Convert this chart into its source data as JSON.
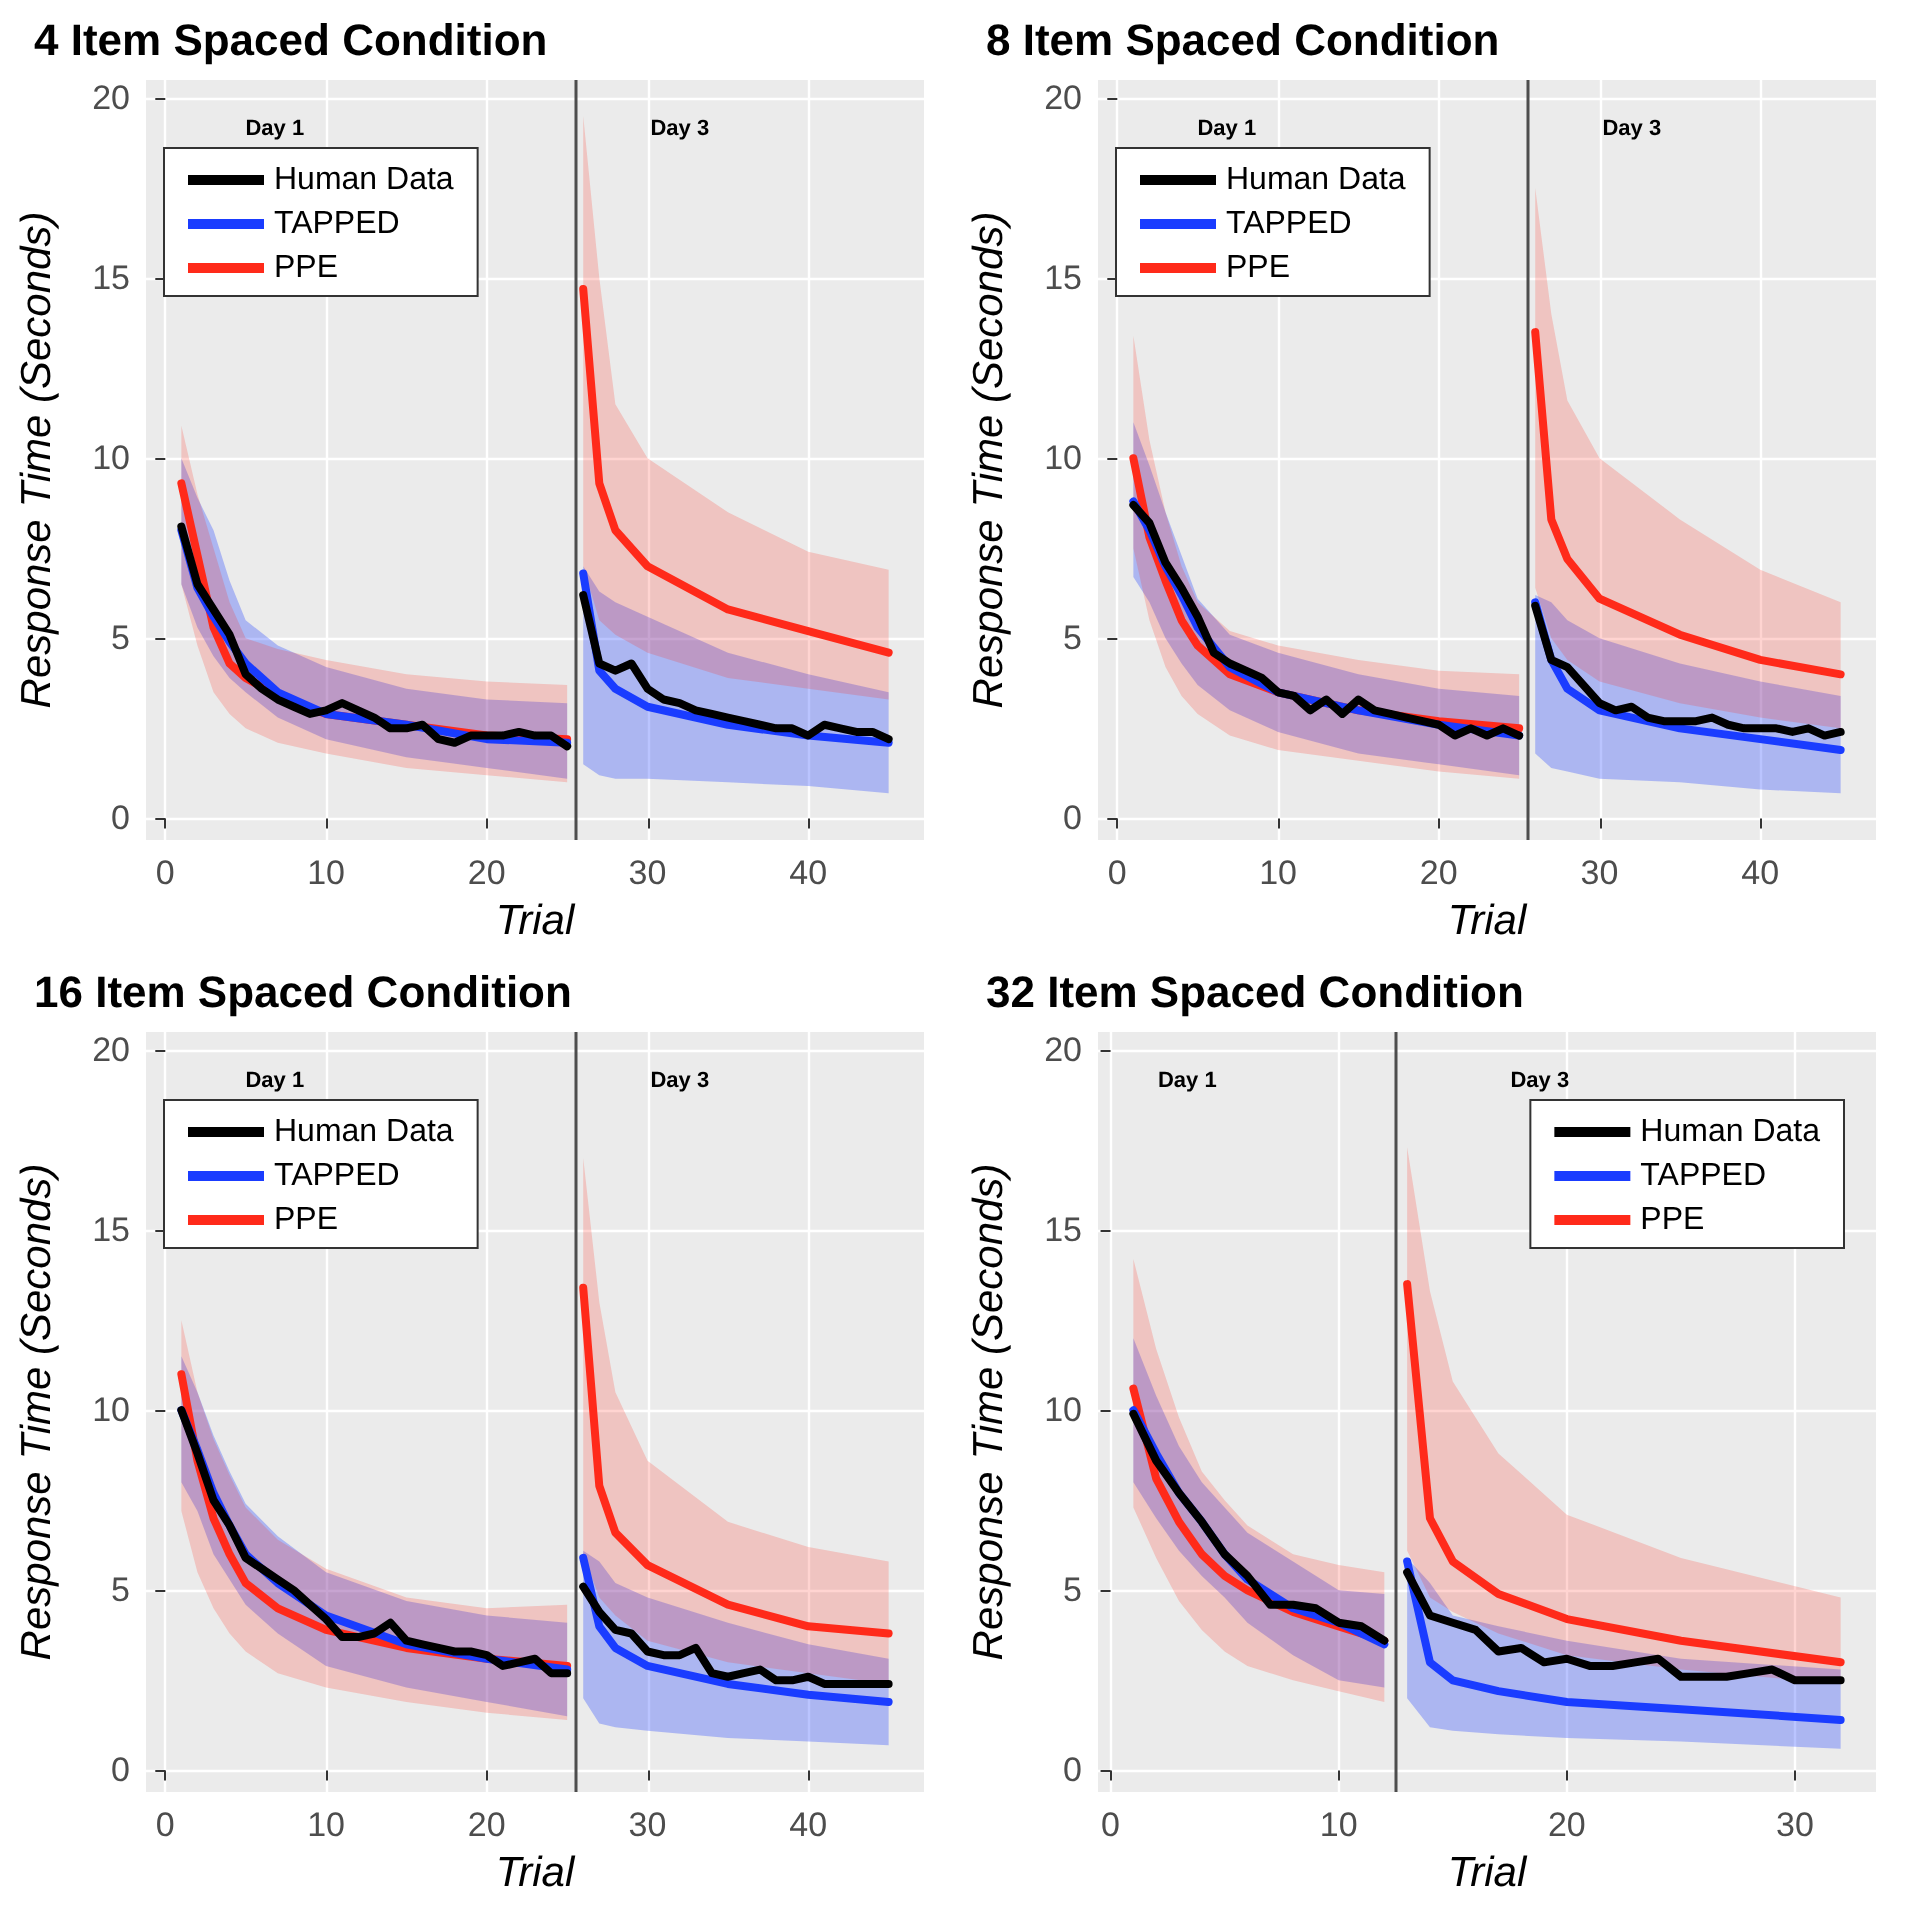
{
  "chart_data": [
    {
      "type": "line",
      "title": "4 Item Spaced Condition",
      "xlabel": "Trial",
      "ylabel": "Response Time (Seconds)",
      "annotations": [
        "Day 1",
        "Day 3"
      ],
      "xlim": [
        -1.2,
        47.2
      ],
      "ylim": [
        -0.6,
        20.5
      ],
      "xticks": [
        0,
        10,
        20,
        30,
        40
      ],
      "yticks": [
        0,
        5,
        10,
        15,
        20
      ],
      "grid": true,
      "legend": "top left",
      "marker": "none",
      "line_style": "solid",
      "ref_lines": [
        {
          "axis": "x",
          "value": 25.5,
          "color": "#4d4d4d"
        }
      ],
      "series": [
        {
          "name": "Human Data",
          "color": "#000000",
          "x": [
            1,
            2,
            3,
            4,
            5,
            6,
            7,
            8,
            9,
            10,
            11,
            12,
            13,
            14,
            15,
            16,
            17,
            18,
            19,
            20,
            21,
            22,
            23,
            24,
            25,
            25.5,
            26,
            27,
            28,
            29,
            30,
            31,
            32,
            33,
            34,
            35,
            36,
            37,
            38,
            39,
            40,
            41,
            42,
            43,
            44,
            45
          ],
          "values": [
            8.1,
            6.5,
            5.8,
            5.1,
            4.0,
            3.6,
            3.3,
            3.1,
            2.9,
            3.0,
            3.2,
            3.0,
            2.8,
            2.5,
            2.5,
            2.6,
            2.2,
            2.1,
            2.3,
            2.3,
            2.3,
            2.4,
            2.3,
            2.3,
            2.0,
            null,
            6.2,
            4.3,
            4.1,
            4.3,
            3.6,
            3.3,
            3.2,
            3.0,
            2.9,
            2.8,
            2.7,
            2.6,
            2.5,
            2.5,
            2.3,
            2.6,
            2.5,
            2.4,
            2.4,
            2.2
          ]
        },
        {
          "name": "TAPPED",
          "color": "#1a3cff",
          "x": [
            1,
            2,
            3,
            4,
            5,
            7,
            10,
            15,
            20,
            25,
            25.5,
            26,
            27,
            28,
            30,
            35,
            40,
            45
          ],
          "values": [
            8.0,
            6.4,
            5.6,
            4.9,
            4.3,
            3.5,
            2.9,
            2.6,
            2.2,
            2.1,
            null,
            6.8,
            4.1,
            3.6,
            3.1,
            2.6,
            2.3,
            2.1
          ],
          "lower": [
            6.5,
            5.3,
            4.5,
            3.9,
            3.5,
            2.8,
            2.2,
            1.7,
            1.4,
            1.1,
            null,
            1.5,
            1.2,
            1.1,
            1.1,
            1.0,
            0.9,
            0.7
          ],
          "upper": [
            10.0,
            8.9,
            8.0,
            6.6,
            5.5,
            4.8,
            4.2,
            3.6,
            3.3,
            3.2,
            null,
            7.0,
            6.3,
            6.0,
            5.6,
            4.6,
            4.0,
            3.5
          ]
        },
        {
          "name": "PPE",
          "color": "#ff2a1a",
          "x": [
            1,
            2,
            3,
            4,
            5,
            7,
            10,
            15,
            20,
            25,
            25.5,
            26,
            27,
            28,
            30,
            35,
            40,
            45
          ],
          "values": [
            9.3,
            7.3,
            5.3,
            4.3,
            3.9,
            3.4,
            2.9,
            2.6,
            2.3,
            2.2,
            null,
            14.7,
            9.3,
            8.0,
            7.0,
            5.8,
            5.2,
            4.6
          ],
          "lower": [
            6.5,
            4.8,
            3.5,
            2.9,
            2.5,
            2.1,
            1.8,
            1.4,
            1.2,
            1.0,
            null,
            7.0,
            5.5,
            5.1,
            4.6,
            3.9,
            3.6,
            3.3
          ],
          "upper": [
            10.9,
            9.0,
            7.5,
            6.0,
            5.0,
            4.7,
            4.4,
            4.0,
            3.8,
            3.7,
            null,
            19.5,
            15.0,
            11.5,
            10.0,
            8.5,
            7.4,
            6.9
          ]
        }
      ]
    },
    {
      "type": "line",
      "title": "8 Item Spaced Condition",
      "xlabel": "Trial",
      "ylabel": "Response Time (Seconds)",
      "annotations": [
        "Day 1",
        "Day 3"
      ],
      "xlim": [
        -1.2,
        47.2
      ],
      "ylim": [
        -0.6,
        20.5
      ],
      "xticks": [
        0,
        10,
        20,
        30,
        40
      ],
      "yticks": [
        0,
        5,
        10,
        15,
        20
      ],
      "grid": true,
      "legend": "top left",
      "marker": "none",
      "line_style": "solid",
      "ref_lines": [
        {
          "axis": "x",
          "value": 25.5,
          "color": "#4d4d4d"
        }
      ],
      "series": [
        {
          "name": "Human Data",
          "color": "#000000",
          "x": [
            1,
            2,
            3,
            4,
            5,
            6,
            7,
            8,
            9,
            10,
            11,
            12,
            13,
            14,
            15,
            16,
            17,
            18,
            19,
            20,
            21,
            22,
            23,
            24,
            25,
            25.5,
            26,
            27,
            28,
            29,
            30,
            31,
            32,
            33,
            34,
            35,
            36,
            37,
            38,
            39,
            40,
            41,
            42,
            43,
            44,
            45
          ],
          "values": [
            8.7,
            8.2,
            7.1,
            6.4,
            5.6,
            4.6,
            4.3,
            4.1,
            3.9,
            3.5,
            3.4,
            3.0,
            3.3,
            2.9,
            3.3,
            3.0,
            2.9,
            2.8,
            2.7,
            2.6,
            2.3,
            2.5,
            2.3,
            2.5,
            2.3,
            null,
            5.9,
            4.4,
            4.2,
            3.7,
            3.2,
            3.0,
            3.1,
            2.8,
            2.7,
            2.7,
            2.7,
            2.8,
            2.6,
            2.5,
            2.5,
            2.5,
            2.4,
            2.5,
            2.3,
            2.4
          ]
        },
        {
          "name": "TAPPED",
          "color": "#1a3cff",
          "x": [
            1,
            2,
            3,
            4,
            5,
            7,
            10,
            15,
            20,
            25,
            25.5,
            26,
            27,
            28,
            30,
            35,
            40,
            45
          ],
          "values": [
            8.8,
            8.0,
            7.0,
            6.2,
            5.3,
            4.2,
            3.5,
            3.0,
            2.6,
            2.3,
            null,
            6.0,
            4.4,
            3.6,
            3.0,
            2.5,
            2.2,
            1.9
          ],
          "lower": [
            6.7,
            6.0,
            5.0,
            4.3,
            3.7,
            3.0,
            2.4,
            1.8,
            1.5,
            1.2,
            null,
            1.8,
            1.4,
            1.3,
            1.1,
            1.0,
            0.8,
            0.7
          ],
          "upper": [
            11.0,
            9.8,
            8.5,
            7.3,
            6.1,
            5.1,
            4.6,
            4.0,
            3.6,
            3.4,
            null,
            6.2,
            6.0,
            5.5,
            5.0,
            4.3,
            3.8,
            3.4
          ]
        },
        {
          "name": "PPE",
          "color": "#ff2a1a",
          "x": [
            1,
            2,
            3,
            4,
            5,
            7,
            10,
            15,
            20,
            25,
            25.5,
            26,
            27,
            28,
            30,
            35,
            40,
            45
          ],
          "values": [
            10.0,
            7.8,
            6.6,
            5.5,
            4.8,
            4.0,
            3.5,
            3.0,
            2.7,
            2.5,
            null,
            13.5,
            8.3,
            7.2,
            6.1,
            5.1,
            4.4,
            4.0
          ],
          "lower": [
            7.5,
            5.5,
            4.2,
            3.4,
            2.9,
            2.3,
            1.9,
            1.6,
            1.3,
            1.1,
            null,
            6.4,
            5.0,
            4.4,
            3.8,
            3.2,
            2.8,
            2.5
          ],
          "upper": [
            13.4,
            10.5,
            8.5,
            7.0,
            6.0,
            5.2,
            4.8,
            4.4,
            4.1,
            4.0,
            null,
            17.5,
            14.0,
            11.6,
            10.0,
            8.3,
            6.9,
            6.0
          ]
        }
      ]
    },
    {
      "type": "line",
      "title": "16 Item Spaced Condition",
      "xlabel": "Trial",
      "ylabel": "Response Time (Seconds)",
      "annotations": [
        "Day 1",
        "Day 3"
      ],
      "xlim": [
        -1.2,
        47.2
      ],
      "ylim": [
        -0.6,
        20.5
      ],
      "xticks": [
        0,
        10,
        20,
        30,
        40
      ],
      "yticks": [
        0,
        5,
        10,
        15,
        20
      ],
      "grid": true,
      "legend": "top left",
      "marker": "none",
      "line_style": "solid",
      "ref_lines": [
        {
          "axis": "x",
          "value": 25.5,
          "color": "#4d4d4d"
        }
      ],
      "series": [
        {
          "name": "Human Data",
          "color": "#000000",
          "x": [
            1,
            2,
            3,
            4,
            5,
            6,
            7,
            8,
            9,
            10,
            11,
            12,
            13,
            14,
            15,
            16,
            17,
            18,
            19,
            20,
            21,
            22,
            23,
            24,
            25,
            25.5,
            26,
            27,
            28,
            29,
            30,
            31,
            32,
            33,
            34,
            35,
            36,
            37,
            38,
            39,
            40,
            41,
            42,
            43,
            44,
            45
          ],
          "values": [
            10.0,
            8.8,
            7.5,
            6.8,
            5.9,
            5.6,
            5.3,
            5.0,
            4.6,
            4.2,
            3.7,
            3.7,
            3.8,
            4.1,
            3.6,
            3.5,
            3.4,
            3.3,
            3.3,
            3.2,
            2.9,
            3.0,
            3.1,
            2.7,
            2.7,
            null,
            5.1,
            4.4,
            3.9,
            3.8,
            3.3,
            3.2,
            3.2,
            3.4,
            2.7,
            2.6,
            2.7,
            2.8,
            2.5,
            2.5,
            2.6,
            2.4,
            2.4,
            2.4,
            2.4,
            2.4
          ]
        },
        {
          "name": "TAPPED",
          "color": "#1a3cff",
          "x": [
            1,
            2,
            3,
            4,
            5,
            7,
            10,
            15,
            20,
            25,
            25.5,
            26,
            27,
            28,
            30,
            35,
            40,
            45
          ],
          "values": [
            10.0,
            8.9,
            7.7,
            6.8,
            6.0,
            5.2,
            4.3,
            3.5,
            3.1,
            2.8,
            null,
            5.9,
            4.0,
            3.4,
            2.9,
            2.4,
            2.1,
            1.9
          ],
          "lower": [
            8.0,
            7.2,
            6.0,
            5.3,
            4.6,
            3.8,
            2.9,
            2.3,
            1.9,
            1.5,
            null,
            2.0,
            1.3,
            1.2,
            1.1,
            0.9,
            0.8,
            0.7
          ],
          "upper": [
            11.5,
            10.5,
            9.3,
            8.3,
            7.4,
            6.5,
            5.5,
            4.7,
            4.3,
            4.1,
            null,
            6.1,
            5.8,
            5.2,
            4.8,
            4.1,
            3.5,
            3.1
          ]
        },
        {
          "name": "PPE",
          "color": "#ff2a1a",
          "x": [
            1,
            2,
            3,
            4,
            5,
            7,
            10,
            15,
            20,
            25,
            25.5,
            26,
            27,
            28,
            30,
            35,
            40,
            45
          ],
          "values": [
            11.0,
            8.6,
            7.0,
            6.0,
            5.2,
            4.5,
            3.9,
            3.4,
            3.1,
            2.9,
            null,
            13.4,
            7.9,
            6.6,
            5.7,
            4.6,
            4.0,
            3.8
          ],
          "lower": [
            7.2,
            5.5,
            4.5,
            3.8,
            3.3,
            2.7,
            2.3,
            1.9,
            1.6,
            1.4,
            null,
            6.0,
            4.8,
            4.3,
            3.6,
            3.0,
            2.7,
            2.4
          ],
          "upper": [
            12.5,
            10.5,
            9.2,
            8.2,
            7.3,
            6.4,
            5.6,
            4.8,
            4.5,
            4.6,
            null,
            17.0,
            13.0,
            10.5,
            8.6,
            6.9,
            6.2,
            5.8
          ]
        }
      ]
    },
    {
      "type": "line",
      "title": "32 Item Spaced Condition",
      "xlabel": "Trial",
      "ylabel": "Response Time (Seconds)",
      "annotations": [
        "Day 1",
        "Day 3"
      ],
      "xlim": [
        -0.55,
        33.55
      ],
      "ylim": [
        -0.6,
        20.5
      ],
      "xticks": [
        0,
        10,
        20,
        30
      ],
      "yticks": [
        0,
        5,
        10,
        15,
        20
      ],
      "grid": true,
      "legend": "top right",
      "marker": "none",
      "line_style": "solid",
      "ref_lines": [
        {
          "axis": "x",
          "value": 12.5,
          "color": "#4d4d4d"
        }
      ],
      "series": [
        {
          "name": "Human Data",
          "color": "#000000",
          "x": [
            1,
            2,
            3,
            4,
            5,
            6,
            7,
            8,
            9,
            10,
            11,
            12,
            12.5,
            13,
            14,
            15,
            16,
            17,
            18,
            19,
            20,
            21,
            22,
            23,
            24,
            25,
            26,
            27,
            28,
            29,
            30,
            31,
            32
          ],
          "values": [
            9.9,
            8.6,
            7.7,
            6.9,
            6.0,
            5.4,
            4.6,
            4.6,
            4.5,
            4.1,
            4.0,
            3.6,
            null,
            5.5,
            4.3,
            4.1,
            3.9,
            3.3,
            3.4,
            3.0,
            3.1,
            2.9,
            2.9,
            3.0,
            3.1,
            2.6,
            2.6,
            2.6,
            2.7,
            2.8,
            2.5,
            2.5,
            2.5
          ]
        },
        {
          "name": "TAPPED",
          "color": "#1a3cff",
          "x": [
            1,
            2,
            3,
            4,
            5,
            6,
            8,
            10,
            12,
            12.5,
            13,
            14,
            15,
            17,
            20,
            25,
            32
          ],
          "values": [
            10.0,
            8.8,
            7.7,
            6.9,
            6.0,
            5.3,
            4.5,
            4.1,
            3.5,
            null,
            5.8,
            3.0,
            2.5,
            2.2,
            1.9,
            1.7,
            1.4
          ],
          "lower": [
            8.0,
            7.0,
            6.1,
            5.4,
            4.8,
            4.1,
            3.2,
            2.5,
            2.3,
            null,
            2.0,
            1.2,
            1.1,
            1.0,
            0.9,
            0.8,
            0.6
          ],
          "upper": [
            12.0,
            10.4,
            9.0,
            8.0,
            7.3,
            6.6,
            5.8,
            5.0,
            4.9,
            null,
            5.9,
            5.2,
            4.3,
            4.0,
            3.6,
            3.1,
            2.8
          ]
        },
        {
          "name": "PPE",
          "color": "#ff2a1a",
          "x": [
            1,
            2,
            3,
            4,
            5,
            6,
            8,
            10,
            12,
            12.5,
            13,
            14,
            15,
            17,
            20,
            25,
            32
          ],
          "values": [
            10.6,
            8.1,
            6.9,
            6.0,
            5.4,
            5.0,
            4.4,
            4.0,
            3.6,
            null,
            13.5,
            7.0,
            5.8,
            4.9,
            4.2,
            3.6,
            3.0
          ],
          "lower": [
            7.3,
            5.9,
            4.7,
            3.9,
            3.3,
            2.9,
            2.5,
            2.2,
            1.9,
            null,
            6.1,
            4.8,
            4.4,
            3.8,
            3.2,
            2.8,
            2.4
          ],
          "upper": [
            14.2,
            11.7,
            9.8,
            8.3,
            7.5,
            6.8,
            6.0,
            5.7,
            5.5,
            null,
            17.3,
            13.3,
            10.8,
            8.8,
            7.1,
            5.9,
            4.8
          ]
        }
      ]
    }
  ]
}
